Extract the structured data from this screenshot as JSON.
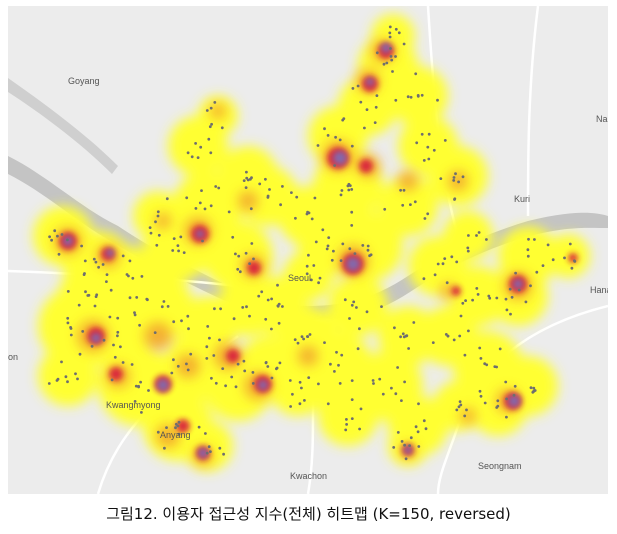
{
  "map": {
    "places": [
      {
        "name": "Goyang"
      },
      {
        "name": "Seoul"
      },
      {
        "name": "Kuri"
      },
      {
        "name": "Hana"
      },
      {
        "name": "Kwangmyong"
      },
      {
        "name": "Anyang"
      },
      {
        "name": "Kwachon"
      },
      {
        "name": "Seongnam"
      },
      {
        "name": "on"
      },
      {
        "name": "Na"
      }
    ],
    "colors": {
      "basemap": "#ececec",
      "river": "#c4c4c4",
      "road": "#ffffff",
      "low": "#ffff33",
      "mid": "#f2a22e",
      "high": "#d81e3c",
      "peak": "#7a6fb8",
      "point": "#6e6e6e"
    }
  },
  "caption": "그림12. 이용자 접근성 지수(전체) 히트맵 (K=150, reversed)"
}
